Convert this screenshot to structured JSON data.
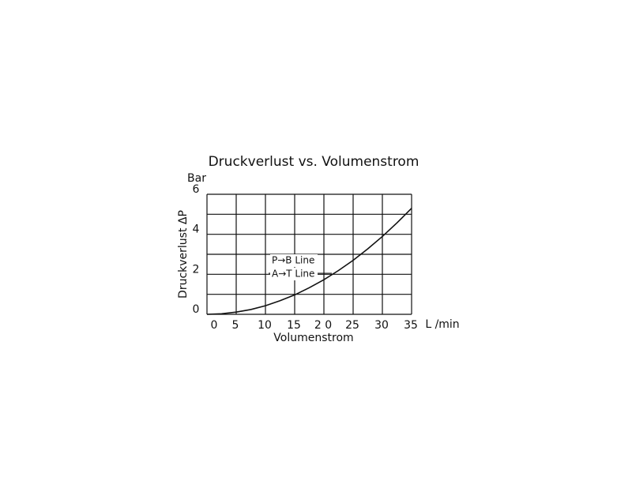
{
  "chart_data": {
    "type": "line",
    "title": "Druckverlust vs. Volumenstrom",
    "x_label": "Volumenstrom",
    "x_unit": "L /min",
    "y_label": "Druckverlust ΔP",
    "y_unit": "Bar",
    "x": [
      0,
      2.5,
      5,
      7.5,
      10,
      12.5,
      15,
      17.5,
      20,
      22.5,
      25,
      27.5,
      30,
      32.5,
      35
    ],
    "series": [
      {
        "color": "#111111",
        "values": [
          0,
          0.03,
          0.11,
          0.24,
          0.43,
          0.68,
          0.97,
          1.33,
          1.73,
          2.19,
          2.7,
          3.27,
          3.89,
          4.57,
          5.3
        ]
      }
    ],
    "annotations": [
      "P→B Line",
      "A→T Line"
    ],
    "xlim": [
      0,
      35
    ],
    "xticks": [
      0,
      5,
      10,
      15,
      {
        "value": 20,
        "label": "2 0"
      },
      25,
      30,
      35
    ],
    "ylim": [
      0,
      6
    ],
    "yticks": [
      0,
      2,
      4,
      6
    ],
    "ygrid": [
      0,
      1,
      2,
      3,
      4,
      5,
      6
    ],
    "grid": true
  }
}
